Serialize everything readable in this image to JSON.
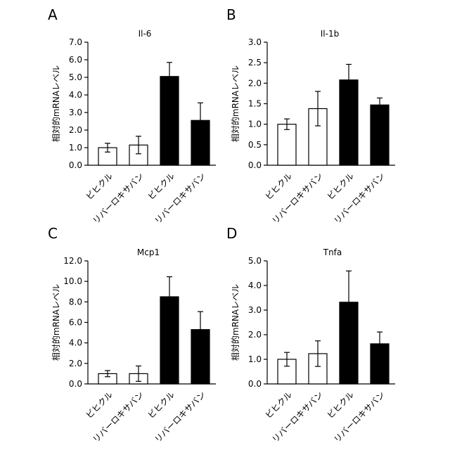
{
  "chart_data": [
    {
      "panel": "A",
      "type": "bar",
      "title": "Il-6",
      "ylabel": "相対的mRNAレベル",
      "categories": [
        "ビヒクル",
        "リバーロキサバン",
        "ビヒクル",
        "リバーロキサバン"
      ],
      "values": [
        1.0,
        1.15,
        5.05,
        2.55
      ],
      "errors": [
        0.25,
        0.5,
        0.8,
        1.0
      ],
      "bar_colors": [
        "#ffffff",
        "#ffffff",
        "#000000",
        "#000000"
      ],
      "ylim": [
        0,
        7
      ],
      "yticks": [
        "0.0",
        "1.0",
        "2.0",
        "3.0",
        "4.0",
        "5.0",
        "6.0",
        "7.0"
      ]
    },
    {
      "panel": "B",
      "type": "bar",
      "title": "Il-1b",
      "ylabel": "相対的mRNAレベル",
      "categories": [
        "ビヒクル",
        "リバーロキサバン",
        "ビヒクル",
        "リバーロキサバン"
      ],
      "values": [
        1.0,
        1.38,
        2.08,
        1.47
      ],
      "errors": [
        0.13,
        0.42,
        0.38,
        0.17
      ],
      "bar_colors": [
        "#ffffff",
        "#ffffff",
        "#000000",
        "#000000"
      ],
      "ylim": [
        0,
        3
      ],
      "yticks": [
        "0.0",
        "0.5",
        "1.0",
        "1.5",
        "2.0",
        "2.5",
        "3.0"
      ]
    },
    {
      "panel": "C",
      "type": "bar",
      "title": "Mcp1",
      "ylabel": "相対的mRNAレベル",
      "categories": [
        "ビヒクル",
        "リバーロキサバン",
        "ビヒクル",
        "リバーロキサバン"
      ],
      "values": [
        1.0,
        1.0,
        8.5,
        5.3
      ],
      "errors": [
        0.3,
        0.75,
        1.95,
        1.75
      ],
      "bar_colors": [
        "#ffffff",
        "#ffffff",
        "#000000",
        "#000000"
      ],
      "ylim": [
        0,
        12
      ],
      "yticks": [
        "0.0",
        "2.0",
        "4.0",
        "6.0",
        "8.0",
        "10.0",
        "12.0"
      ]
    },
    {
      "panel": "D",
      "type": "bar",
      "title": "Tnfa",
      "ylabel": "相対的mRNAレベル",
      "categories": [
        "ビヒクル",
        "リバーロキサバン",
        "ビヒクル",
        "リバーロキサバン"
      ],
      "values": [
        1.0,
        1.23,
        3.32,
        1.63
      ],
      "errors": [
        0.28,
        0.52,
        1.27,
        0.48
      ],
      "bar_colors": [
        "#ffffff",
        "#ffffff",
        "#000000",
        "#000000"
      ],
      "ylim": [
        0,
        5
      ],
      "yticks": [
        "0.0",
        "1.0",
        "2.0",
        "3.0",
        "4.0",
        "5.0"
      ]
    }
  ]
}
